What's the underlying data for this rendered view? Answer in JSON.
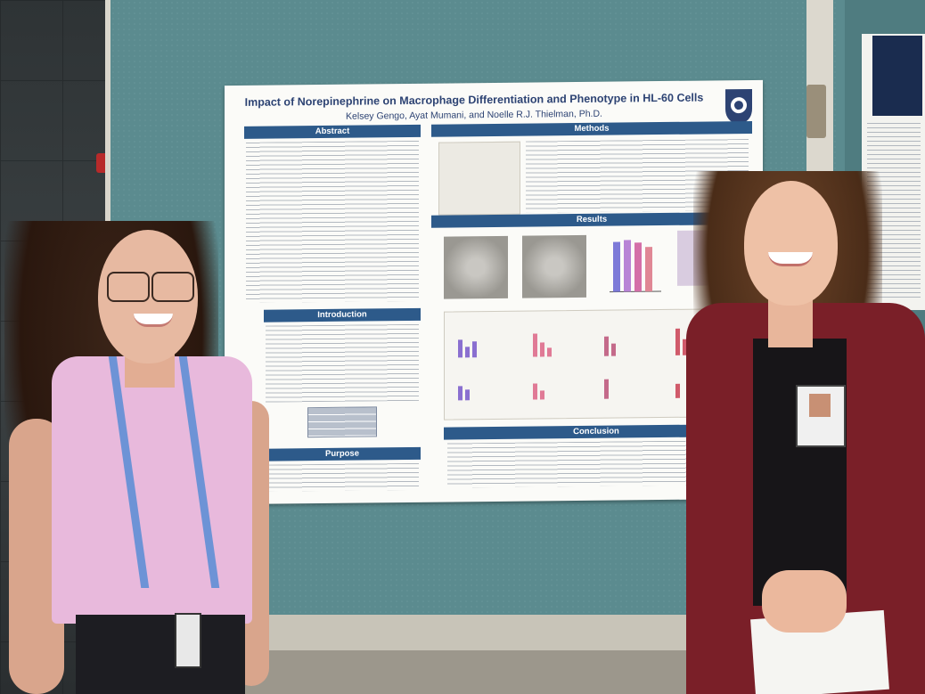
{
  "poster": {
    "title": "Impact of Norepinephrine on Macrophage Differentiation and Phenotype in HL-60 Cells",
    "authors": "Kelsey Gengo, Ayat Mumani, and Noelle R.J. Thielman, Ph.D.",
    "sections": {
      "abstract": "Abstract",
      "methods": "Methods",
      "results": "Results",
      "introduction": "Introduction",
      "purpose": "Purpose",
      "conclusion": "Conclusion"
    }
  },
  "colors": {
    "board": "#5e8a8e",
    "poster_header": "#2d5a8a",
    "title_text": "#2d4373",
    "left_shirt": "#e8b9dc",
    "right_blazer": "#7a1f28"
  }
}
